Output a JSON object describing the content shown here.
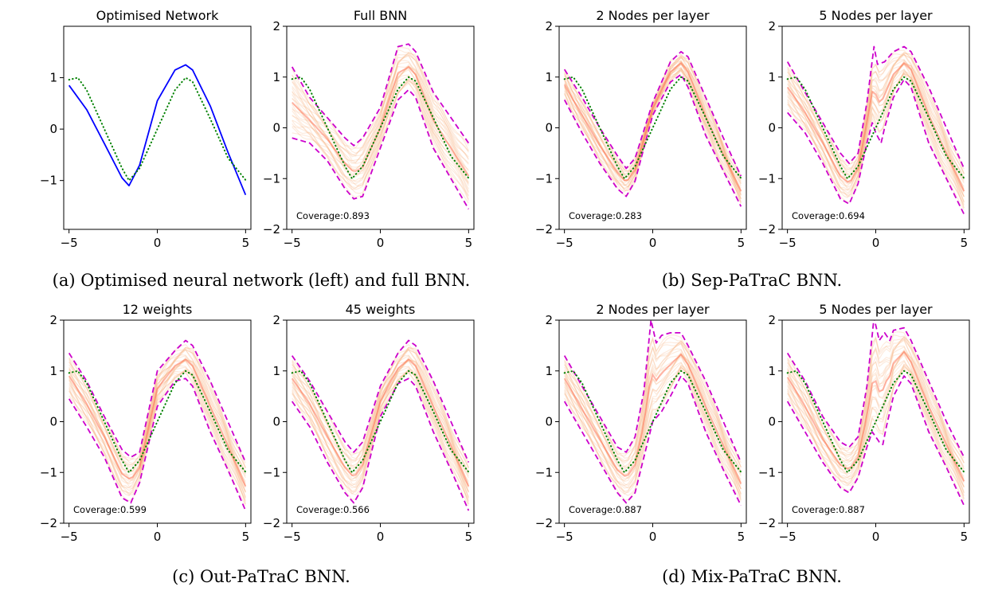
{
  "figure": {
    "target_function": "sin-like reference curve",
    "captions": [
      "(a) Optimised neural network (left) and full BNN.",
      "(b) Sep-PaTraC BNN.",
      "(c) Out-PaTraC BNN.",
      "(d) Mix-PaTraC BNN."
    ],
    "colors": {
      "network": "#0000ff",
      "target": "#008000",
      "bound": "#cc00cc",
      "samples": "#f4a46a",
      "mean": "#ff5a3c"
    }
  },
  "chart_data": [
    {
      "type": "line",
      "title": "Optimised Network",
      "coverage": null,
      "xlim": [
        -5.3,
        5.3
      ],
      "ylim": [
        -1.95,
        2.0
      ],
      "xticks": [
        -5,
        0,
        5
      ],
      "yticks": [
        -1,
        0,
        1
      ],
      "xticklabels": [
        "−5",
        "0",
        "5"
      ],
      "yticklabels": [
        "−1",
        "0",
        "1"
      ],
      "series": [
        {
          "name": "Optimised network",
          "style": "solid",
          "color": "#0000ff",
          "x": [
            -5,
            -4,
            -3,
            -2,
            -1.6,
            -1,
            0,
            1,
            1.6,
            2,
            3,
            4,
            5
          ],
          "y": [
            0.85,
            0.38,
            -0.28,
            -0.95,
            -1.1,
            -0.7,
            0.55,
            1.15,
            1.25,
            1.15,
            0.45,
            -0.45,
            -1.28
          ]
        },
        {
          "name": "Target function",
          "style": "dotted",
          "color": "#008000",
          "x": [
            -5,
            -4.5,
            -4,
            -3,
            -2,
            -1.6,
            -1,
            0,
            1,
            1.6,
            2,
            3,
            4,
            5
          ],
          "y": [
            0.96,
            1.0,
            0.76,
            0.0,
            -0.76,
            -1.0,
            -0.76,
            0.0,
            0.76,
            1.0,
            0.92,
            0.2,
            -0.56,
            -0.99
          ]
        }
      ]
    },
    {
      "type": "line",
      "title": "Full BNN",
      "coverage": "Coverage:0.893",
      "xlim": [
        -5.3,
        5.3
      ],
      "ylim": [
        -2,
        2
      ],
      "xticks": [
        -5,
        0,
        5
      ],
      "yticks": [
        -2,
        -1,
        0,
        1,
        2
      ],
      "xticklabels": [
        "−5",
        "0",
        "5"
      ],
      "yticklabels": [
        "−2",
        "−1",
        "0",
        "1",
        "2"
      ],
      "series": [
        {
          "name": "Upper bound",
          "style": "dashed",
          "color": "#cc00cc",
          "x": [
            -5,
            -4,
            -3,
            -2,
            -1.5,
            -1,
            0,
            1,
            1.6,
            2,
            3,
            4,
            5
          ],
          "y": [
            1.2,
            0.6,
            0.2,
            -0.2,
            -0.35,
            -0.2,
            0.4,
            1.6,
            1.65,
            1.5,
            0.7,
            0.2,
            -0.3
          ]
        },
        {
          "name": "Lower bound",
          "style": "dashed",
          "color": "#cc00cc",
          "x": [
            -5,
            -4,
            -3,
            -2,
            -1.5,
            -1,
            0,
            1,
            1.6,
            2,
            3,
            4,
            5
          ],
          "y": [
            -0.2,
            -0.3,
            -0.65,
            -1.2,
            -1.4,
            -1.35,
            -0.4,
            0.55,
            0.75,
            0.6,
            -0.4,
            -1.0,
            -1.6
          ]
        },
        {
          "name": "Target function",
          "style": "dotted",
          "color": "#008000",
          "x": [
            -5,
            -4.5,
            -4,
            -3,
            -2,
            -1.6,
            -1,
            0,
            1,
            1.6,
            2,
            3,
            4,
            5
          ],
          "y": [
            0.96,
            1.0,
            0.76,
            0.0,
            -0.76,
            -1.0,
            -0.76,
            0.0,
            0.76,
            1.0,
            0.92,
            0.2,
            -0.56,
            -0.99
          ]
        }
      ]
    },
    {
      "type": "line",
      "title": "2 Nodes per layer",
      "coverage": "Coverage:0.283",
      "xlim": [
        -5.3,
        5.3
      ],
      "ylim": [
        -2,
        2
      ],
      "xticks": [
        -5,
        0,
        5
      ],
      "yticks": [
        -2,
        -1,
        0,
        1,
        2
      ],
      "xticklabels": [
        "−5",
        "0",
        "5"
      ],
      "yticklabels": [
        "−2",
        "−1",
        "0",
        "1",
        "2"
      ],
      "series": [
        {
          "name": "Upper bound",
          "style": "dashed",
          "color": "#cc00cc",
          "x": [
            -5,
            -4,
            -3,
            -2,
            -1.5,
            -1,
            0,
            1,
            1.6,
            2,
            3,
            4,
            5
          ],
          "y": [
            1.15,
            0.6,
            0.0,
            -0.55,
            -0.8,
            -0.6,
            0.5,
            1.3,
            1.5,
            1.4,
            0.6,
            -0.2,
            -0.95
          ]
        },
        {
          "name": "Lower bound",
          "style": "dashed",
          "color": "#cc00cc",
          "x": [
            -5,
            -4,
            -3,
            -2,
            -1.5,
            -1,
            0,
            1,
            1.6,
            2,
            3,
            4,
            5
          ],
          "y": [
            0.55,
            -0.1,
            -0.7,
            -1.2,
            -1.35,
            -1.05,
            0.25,
            0.9,
            1.05,
            0.8,
            -0.15,
            -0.85,
            -1.55
          ]
        },
        {
          "name": "Target function",
          "style": "dotted",
          "color": "#008000",
          "x": [
            -5,
            -4.5,
            -4,
            -3,
            -2,
            -1.6,
            -1,
            0,
            1,
            1.6,
            2,
            3,
            4,
            5
          ],
          "y": [
            0.96,
            1.0,
            0.76,
            0.0,
            -0.76,
            -1.0,
            -0.76,
            0.0,
            0.76,
            1.0,
            0.92,
            0.2,
            -0.56,
            -0.99
          ]
        }
      ]
    },
    {
      "type": "line",
      "title": "5 Nodes per layer",
      "coverage": "Coverage:0.694",
      "xlim": [
        -5.3,
        5.3
      ],
      "ylim": [
        -2,
        2
      ],
      "xticks": [
        -5,
        0,
        5
      ],
      "yticks": [
        -2,
        -1,
        0,
        1,
        2
      ],
      "xticklabels": [
        "−5",
        "0",
        "5"
      ],
      "yticklabels": [
        "−2",
        "−1",
        "0",
        "1",
        "2"
      ],
      "series": [
        {
          "name": "Upper bound",
          "style": "dashed",
          "color": "#cc00cc",
          "x": [
            -5,
            -4,
            -3,
            -2,
            -1.5,
            -1,
            -0.5,
            -0.1,
            0.1,
            0.5,
            1,
            1.6,
            2,
            3,
            4,
            5
          ],
          "y": [
            1.3,
            0.7,
            0.1,
            -0.5,
            -0.7,
            -0.5,
            0.5,
            1.6,
            1.25,
            1.3,
            1.5,
            1.6,
            1.5,
            0.8,
            0.0,
            -0.8
          ]
        },
        {
          "name": "Lower bound",
          "style": "dashed",
          "color": "#cc00cc",
          "x": [
            -5,
            -4,
            -3,
            -2,
            -1.5,
            -1,
            -0.5,
            -0.2,
            0,
            0.3,
            0.5,
            1,
            1.6,
            2,
            3,
            4,
            5
          ],
          "y": [
            0.3,
            -0.1,
            -0.7,
            -1.4,
            -1.5,
            -1.1,
            -0.3,
            0.1,
            -0.1,
            -0.3,
            0.0,
            0.6,
            0.95,
            0.8,
            -0.3,
            -1.0,
            -1.7
          ]
        },
        {
          "name": "Target function",
          "style": "dotted",
          "color": "#008000",
          "x": [
            -5,
            -4.5,
            -4,
            -3,
            -2,
            -1.6,
            -1,
            0,
            1,
            1.6,
            2,
            3,
            4,
            5
          ],
          "y": [
            0.96,
            1.0,
            0.76,
            0.0,
            -0.76,
            -1.0,
            -0.76,
            0.0,
            0.76,
            1.0,
            0.92,
            0.2,
            -0.56,
            -0.99
          ]
        }
      ]
    },
    {
      "type": "line",
      "title": "12 weights",
      "coverage": "Coverage:0.599",
      "xlim": [
        -5.3,
        5.3
      ],
      "ylim": [
        -2,
        2
      ],
      "xticks": [
        -5,
        0,
        5
      ],
      "yticks": [
        -2,
        -1,
        0,
        1,
        2
      ],
      "xticklabels": [
        "−5",
        "0",
        "5"
      ],
      "yticklabels": [
        "−2",
        "−1",
        "0",
        "1",
        "2"
      ],
      "series": [
        {
          "name": "Upper bound",
          "style": "dashed",
          "color": "#cc00cc",
          "x": [
            -5,
            -4,
            -3,
            -2,
            -1.5,
            -1,
            -0.5,
            0,
            1,
            1.6,
            2,
            3,
            4,
            5
          ],
          "y": [
            1.35,
            0.8,
            0.1,
            -0.55,
            -0.7,
            -0.6,
            0.2,
            1.0,
            1.4,
            1.6,
            1.5,
            0.8,
            0.0,
            -0.8
          ]
        },
        {
          "name": "Lower bound",
          "style": "dashed",
          "color": "#cc00cc",
          "x": [
            -5,
            -4,
            -3,
            -2,
            -1.5,
            -1,
            0,
            1,
            1.6,
            2,
            3,
            4,
            5
          ],
          "y": [
            0.45,
            -0.1,
            -0.7,
            -1.5,
            -1.6,
            -1.2,
            0.3,
            0.8,
            0.85,
            0.7,
            -0.2,
            -0.95,
            -1.75
          ]
        },
        {
          "name": "Target function",
          "style": "dotted",
          "color": "#008000",
          "x": [
            -5,
            -4.5,
            -4,
            -3,
            -2,
            -1.6,
            -1,
            0,
            1,
            1.6,
            2,
            3,
            4,
            5
          ],
          "y": [
            0.96,
            1.0,
            0.76,
            0.0,
            -0.76,
            -1.0,
            -0.76,
            0.0,
            0.76,
            1.0,
            0.92,
            0.2,
            -0.56,
            -0.99
          ]
        }
      ]
    },
    {
      "type": "line",
      "title": "45 weights",
      "coverage": "Coverage:0.566",
      "xlim": [
        -5.3,
        5.3
      ],
      "ylim": [
        -2,
        2
      ],
      "xticks": [
        -5,
        0,
        5
      ],
      "yticks": [
        -2,
        -1,
        0,
        1,
        2
      ],
      "xticklabels": [
        "−5",
        "0",
        "5"
      ],
      "yticklabels": [
        "−2",
        "−1",
        "0",
        "1",
        "2"
      ],
      "series": [
        {
          "name": "Upper bound",
          "style": "dashed",
          "color": "#cc00cc",
          "x": [
            -5,
            -4,
            -3,
            -2,
            -1.5,
            -1,
            0,
            1,
            1.6,
            2,
            3,
            4,
            5
          ],
          "y": [
            1.3,
            0.8,
            0.2,
            -0.4,
            -0.6,
            -0.4,
            0.7,
            1.35,
            1.6,
            1.5,
            0.8,
            0.0,
            -0.8
          ]
        },
        {
          "name": "Lower bound",
          "style": "dashed",
          "color": "#cc00cc",
          "x": [
            -5,
            -4,
            -3,
            -2,
            -1.5,
            -1,
            0,
            1,
            1.6,
            2,
            3,
            4,
            5
          ],
          "y": [
            0.4,
            -0.1,
            -0.8,
            -1.4,
            -1.6,
            -1.3,
            0.1,
            0.75,
            0.85,
            0.7,
            -0.2,
            -0.95,
            -1.75
          ]
        },
        {
          "name": "Target function",
          "style": "dotted",
          "color": "#008000",
          "x": [
            -5,
            -4.5,
            -4,
            -3,
            -2,
            -1.6,
            -1,
            0,
            1,
            1.6,
            2,
            3,
            4,
            5
          ],
          "y": [
            0.96,
            1.0,
            0.76,
            0.0,
            -0.76,
            -1.0,
            -0.76,
            0.0,
            0.76,
            1.0,
            0.92,
            0.2,
            -0.56,
            -0.99
          ]
        }
      ]
    },
    {
      "type": "line",
      "title": "2 Nodes per layer",
      "coverage": "Coverage:0.887",
      "xlim": [
        -5.3,
        5.3
      ],
      "ylim": [
        -2,
        2
      ],
      "xticks": [
        -5,
        0,
        5
      ],
      "yticks": [
        -2,
        -1,
        0,
        1,
        2
      ],
      "xticklabels": [
        "−5",
        "0",
        "5"
      ],
      "yticklabels": [
        "−2",
        "−1",
        "0",
        "1",
        "2"
      ],
      "series": [
        {
          "name": "Upper bound",
          "style": "dashed",
          "color": "#cc00cc",
          "x": [
            -5,
            -4,
            -3,
            -2,
            -1.5,
            -1,
            -0.5,
            -0.1,
            0.2,
            0.5,
            1,
            1.6,
            2,
            3,
            4,
            5
          ],
          "y": [
            1.3,
            0.7,
            0.1,
            -0.5,
            -0.6,
            -0.3,
            0.6,
            2.0,
            1.55,
            1.7,
            1.75,
            1.75,
            1.5,
            0.8,
            0.0,
            -0.8
          ]
        },
        {
          "name": "Lower bound",
          "style": "dashed",
          "color": "#cc00cc",
          "x": [
            -5,
            -4,
            -3,
            -2,
            -1.5,
            -1,
            -0.5,
            0,
            0.5,
            1,
            1.6,
            2,
            3,
            4,
            5
          ],
          "y": [
            0.4,
            -0.2,
            -0.8,
            -1.4,
            -1.6,
            -1.4,
            -0.7,
            0.0,
            0.2,
            0.5,
            0.9,
            0.75,
            -0.2,
            -0.95,
            -1.65
          ]
        },
        {
          "name": "Target function",
          "style": "dotted",
          "color": "#008000",
          "x": [
            -5,
            -4.5,
            -4,
            -3,
            -2,
            -1.6,
            -1,
            0,
            1,
            1.6,
            2,
            3,
            4,
            5
          ],
          "y": [
            0.96,
            1.0,
            0.76,
            0.0,
            -0.76,
            -1.0,
            -0.76,
            0.0,
            0.76,
            1.0,
            0.92,
            0.2,
            -0.56,
            -0.99
          ]
        }
      ]
    },
    {
      "type": "line",
      "title": "5 Nodes per layer",
      "coverage": "Coverage:0.887",
      "xlim": [
        -5.3,
        5.3
      ],
      "ylim": [
        -2,
        2
      ],
      "xticks": [
        -5,
        0,
        5
      ],
      "yticks": [
        -2,
        -1,
        0,
        1,
        2
      ],
      "xticklabels": [
        "−5",
        "0",
        "5"
      ],
      "yticklabels": [
        "−2",
        "−1",
        "0",
        "1",
        "2"
      ],
      "series": [
        {
          "name": "Upper bound",
          "style": "dashed",
          "color": "#cc00cc",
          "x": [
            -5,
            -4,
            -3,
            -2,
            -1.5,
            -1,
            -0.5,
            -0.1,
            0.2,
            0.5,
            0.8,
            1,
            1.6,
            2,
            3,
            4,
            5
          ],
          "y": [
            1.35,
            0.8,
            0.1,
            -0.4,
            -0.5,
            -0.3,
            0.7,
            2.05,
            1.6,
            1.75,
            1.6,
            1.8,
            1.85,
            1.6,
            0.8,
            0.0,
            -0.7
          ]
        },
        {
          "name": "Lower bound",
          "style": "dashed",
          "color": "#cc00cc",
          "x": [
            -5,
            -4,
            -3,
            -2,
            -1.5,
            -1,
            -0.5,
            -0.2,
            0,
            0.2,
            0.4,
            0.6,
            1,
            1.6,
            2,
            3,
            4,
            5
          ],
          "y": [
            0.4,
            -0.2,
            -0.8,
            -1.3,
            -1.4,
            -1.1,
            -0.5,
            -0.2,
            -0.3,
            -0.4,
            -0.45,
            -0.1,
            0.5,
            0.9,
            0.75,
            -0.2,
            -0.9,
            -1.65
          ]
        },
        {
          "name": "Target function",
          "style": "dotted",
          "color": "#008000",
          "x": [
            -5,
            -4.5,
            -4,
            -3,
            -2,
            -1.6,
            -1,
            0,
            1,
            1.6,
            2,
            3,
            4,
            5
          ],
          "y": [
            0.96,
            1.0,
            0.76,
            0.0,
            -0.76,
            -1.0,
            -0.76,
            0.0,
            0.76,
            1.0,
            0.92,
            0.2,
            -0.56,
            -0.99
          ]
        }
      ]
    }
  ]
}
